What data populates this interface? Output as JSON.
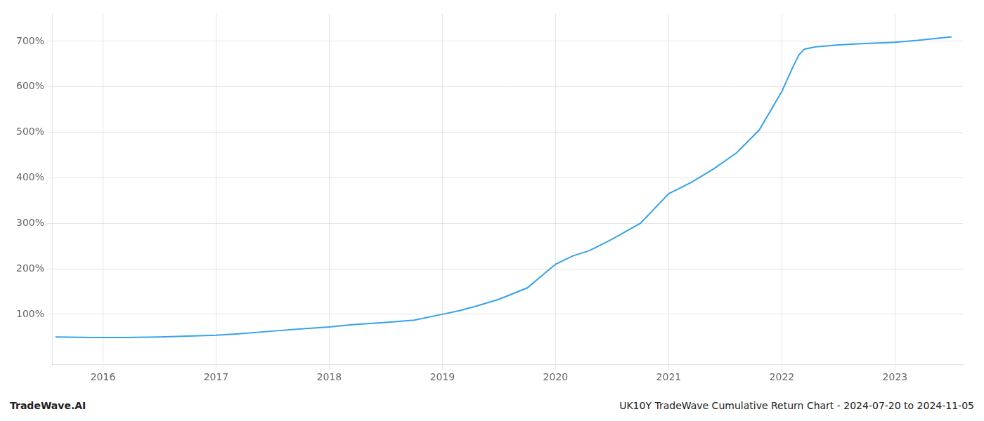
{
  "chart_data": {
    "type": "line",
    "x": [
      2015.58,
      2015.9,
      2016.0,
      2016.2,
      2016.5,
      2016.75,
      2017.0,
      2017.2,
      2017.5,
      2017.75,
      2018.0,
      2018.2,
      2018.5,
      2018.75,
      2019.0,
      2019.15,
      2019.3,
      2019.5,
      2019.75,
      2020.0,
      2020.15,
      2020.3,
      2020.5,
      2020.75,
      2021.0,
      2021.2,
      2021.4,
      2021.6,
      2021.8,
      2022.0,
      2022.1,
      2022.15,
      2022.2,
      2022.3,
      2022.5,
      2022.7,
      2023.0,
      2023.2,
      2023.5
    ],
    "values": [
      50,
      49,
      49,
      49,
      50,
      52,
      54,
      57,
      63,
      68,
      72,
      77,
      82,
      87,
      100,
      108,
      118,
      133,
      158,
      210,
      228,
      240,
      265,
      300,
      365,
      390,
      420,
      455,
      505,
      590,
      645,
      670,
      683,
      688,
      692,
      695,
      698,
      702,
      710
    ],
    "xlim": [
      2015.55,
      2023.6
    ],
    "xticks": [
      2016,
      2017,
      2018,
      2019,
      2020,
      2021,
      2022,
      2023
    ],
    "ylim": [
      -10,
      760
    ],
    "yticks": [
      {
        "value": 100,
        "label": "100%"
      },
      {
        "value": 200,
        "label": "200%"
      },
      {
        "value": 300,
        "label": "300%"
      },
      {
        "value": 400,
        "label": "400%"
      },
      {
        "value": 500,
        "label": "500%"
      },
      {
        "value": 600,
        "label": "600%"
      },
      {
        "value": 700,
        "label": "700%"
      }
    ],
    "grid": true,
    "annotations": [
      "TradeWave.AI",
      "UK10Y TradeWave Cumulative Return Chart - 2024-07-20 to 2024-11-05"
    ]
  }
}
